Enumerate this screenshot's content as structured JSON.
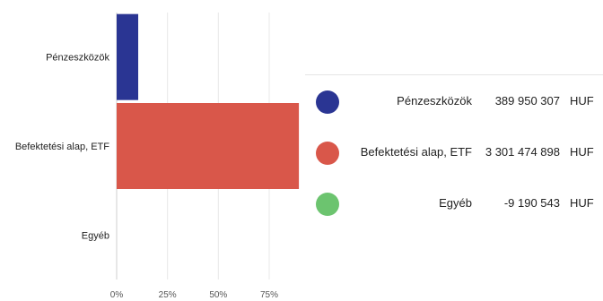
{
  "chart_data": {
    "type": "bar",
    "orientation": "horizontal",
    "categories": [
      "Pénzeszközök",
      "Befektetési alap, ETF",
      "Egyéb"
    ],
    "values": [
      10.6,
      89.6,
      -0.2
    ],
    "unit": "%",
    "xlim": [
      0,
      90
    ],
    "x_ticks": [
      "0%",
      "25%",
      "50%",
      "75%"
    ],
    "x_tick_values": [
      0,
      25,
      50,
      75
    ],
    "grid": "vertical",
    "colors": [
      "#2a3593",
      "#d9574a",
      "#6cc46f"
    ],
    "legend": {
      "placement": "right",
      "items": [
        {
          "name": "Pénzeszközök",
          "amount": "389 950 307",
          "currency": "HUF",
          "color": "#2a3593"
        },
        {
          "name": "Befektetési alap, ETF",
          "amount": "3 301 474 898",
          "currency": "HUF",
          "color": "#d9574a"
        },
        {
          "name": "Egyéb",
          "amount": "-9 190 543",
          "currency": "HUF",
          "color": "#6cc46f"
        }
      ]
    }
  }
}
